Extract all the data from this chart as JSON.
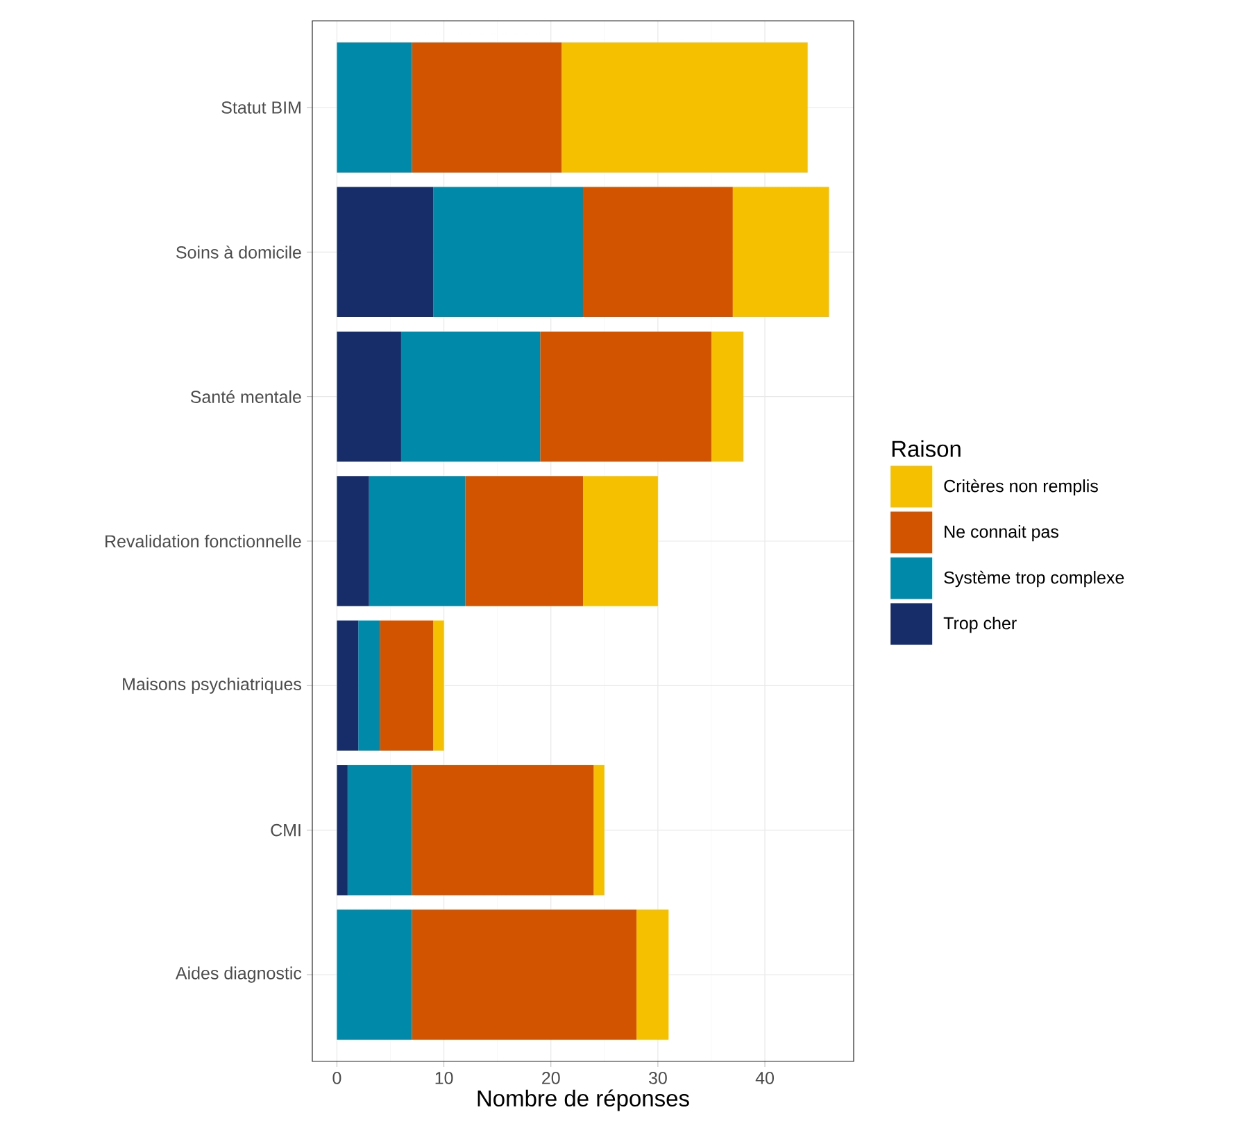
{
  "chart_data": {
    "type": "bar",
    "orientation": "horizontal",
    "stacked": true,
    "xlabel": "Nombre de réponses",
    "legend_title": "Raison",
    "legend": "right",
    "grid": true,
    "categories": [
      "Statut BIM",
      "Soins à domicile",
      "Santé mentale",
      "Revalidation fonctionnelle",
      "Maisons psychiatriques",
      "CMI",
      "Aides diagnostic"
    ],
    "series": [
      {
        "name": "Trop cher",
        "color": "#172d6a",
        "values": [
          0,
          9,
          6,
          3,
          2,
          1,
          0
        ]
      },
      {
        "name": "Système trop complexe",
        "color": "#0089a8",
        "values": [
          7,
          14,
          13,
          9,
          2,
          6,
          7
        ]
      },
      {
        "name": "Ne connait pas",
        "color": "#d35400",
        "values": [
          14,
          14,
          16,
          11,
          5,
          17,
          21
        ]
      },
      {
        "name": "Critères non remplis",
        "color": "#f5c000",
        "values": [
          23,
          9,
          3,
          7,
          1,
          1,
          3
        ]
      }
    ],
    "xlim": [
      -2.3,
      48.3
    ],
    "xticks": [
      0,
      10,
      20,
      30,
      40
    ]
  }
}
